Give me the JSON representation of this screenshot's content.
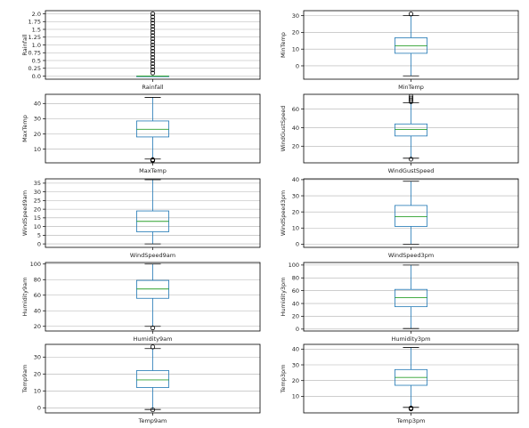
{
  "chart_data": [
    {
      "type": "box",
      "xlabel": "Rainfall",
      "ylabel": "Rainfall",
      "ylim": [
        -0.1,
        2.1
      ],
      "yticks": [
        0.0,
        0.25,
        0.5,
        0.75,
        1.0,
        1.25,
        1.5,
        1.75,
        2.0
      ],
      "ytick_labels": [
        "0.0",
        "0.25",
        "0.5",
        "0.75",
        "1.0",
        "1.25",
        "1.5",
        "1.75",
        "2.0"
      ],
      "q1": 0.0,
      "median": 0.0,
      "q3": 0.0,
      "whisker_low": 0.0,
      "whisker_high": 0.0,
      "outliers": [
        0.1,
        0.2,
        0.3,
        0.4,
        0.5,
        0.6,
        0.7,
        0.8,
        0.9,
        1.0,
        1.1,
        1.2,
        1.3,
        1.4,
        1.5,
        1.6,
        1.7,
        1.8,
        1.9,
        2.0
      ],
      "grid": true
    },
    {
      "type": "box",
      "xlabel": "MinTemp",
      "ylabel": "MinTemp",
      "ylim": [
        -8,
        33
      ],
      "yticks": [
        0,
        10,
        20,
        30
      ],
      "ytick_labels": [
        "0",
        "10",
        "20",
        "30"
      ],
      "q1": 7.5,
      "median": 12,
      "q3": 16.8,
      "whisker_low": -6,
      "whisker_high": 30,
      "outliers": [
        31
      ],
      "grid": true
    },
    {
      "type": "box",
      "xlabel": "MaxTemp",
      "ylabel": "MaxTemp",
      "ylim": [
        1,
        46
      ],
      "yticks": [
        10,
        20,
        30,
        40
      ],
      "ytick_labels": [
        "10",
        "20",
        "30",
        "40"
      ],
      "q1": 18,
      "median": 23,
      "q3": 28.5,
      "whisker_low": 3.5,
      "whisker_high": 44,
      "outliers": [
        2.5,
        2.8,
        3.1
      ],
      "grid": true
    },
    {
      "type": "box",
      "xlabel": "WindGustSpeed",
      "ylabel": "WindGustSpeed",
      "ylim": [
        2,
        76
      ],
      "yticks": [
        20,
        40,
        60
      ],
      "ytick_labels": [
        "20",
        "40",
        "60"
      ],
      "q1": 31,
      "median": 38,
      "q3": 44,
      "whisker_low": 7,
      "whisker_high": 67,
      "outliers": [
        6,
        68,
        70,
        72,
        74
      ],
      "grid": true
    },
    {
      "type": "box",
      "xlabel": "WindSpeed9am",
      "ylabel": "WindSpeed9am",
      "ylim": [
        -2,
        37.5
      ],
      "yticks": [
        0,
        5,
        10,
        15,
        20,
        25,
        30,
        35
      ],
      "ytick_labels": [
        "0",
        "5",
        "10",
        "15",
        "20",
        "25",
        "30",
        "35"
      ],
      "q1": 7,
      "median": 13,
      "q3": 19,
      "whisker_low": 0,
      "whisker_high": 37,
      "outliers": [],
      "grid": true
    },
    {
      "type": "box",
      "xlabel": "WindSpeed3pm",
      "ylabel": "WindSpeed3pm",
      "ylim": [
        -2,
        40.5
      ],
      "yticks": [
        0,
        10,
        20,
        30,
        40
      ],
      "ytick_labels": [
        "0",
        "10",
        "20",
        "30",
        "40"
      ],
      "q1": 11,
      "median": 17,
      "q3": 24,
      "whisker_low": 0,
      "whisker_high": 39,
      "outliers": [],
      "grid": true
    },
    {
      "type": "box",
      "xlabel": "Humidity9am",
      "ylabel": "Humidity9am",
      "ylim": [
        14,
        102
      ],
      "yticks": [
        20,
        40,
        60,
        80,
        100
      ],
      "ytick_labels": [
        "20",
        "40",
        "60",
        "80",
        "100"
      ],
      "q1": 56,
      "median": 68,
      "q3": 79,
      "whisker_low": 20,
      "whisker_high": 100,
      "outliers": [
        18
      ],
      "grid": true
    },
    {
      "type": "box",
      "xlabel": "Humidity3pm",
      "ylabel": "Humidity3pm",
      "ylim": [
        -3,
        104
      ],
      "yticks": [
        0,
        20,
        40,
        60,
        80,
        100
      ],
      "ytick_labels": [
        "0",
        "20",
        "40",
        "60",
        "80",
        "100"
      ],
      "q1": 35,
      "median": 49,
      "q3": 62,
      "whisker_low": 1,
      "whisker_high": 100,
      "outliers": [],
      "grid": true
    },
    {
      "type": "box",
      "xlabel": "Temp9am",
      "ylabel": "Temp9am",
      "ylim": [
        -3,
        37.5
      ],
      "yticks": [
        0,
        10,
        20,
        30
      ],
      "ytick_labels": [
        "0",
        "10",
        "20",
        "30"
      ],
      "q1": 12,
      "median": 16.5,
      "q3": 22,
      "whisker_low": -1,
      "whisker_high": 35,
      "outliers": [
        -1.2,
        36
      ],
      "grid": true
    },
    {
      "type": "box",
      "xlabel": "Temp3pm",
      "ylabel": "Temp3pm",
      "ylim": [
        -0.5,
        43
      ],
      "yticks": [
        10,
        20,
        30,
        40
      ],
      "ytick_labels": [
        "10",
        "20",
        "30",
        "40"
      ],
      "q1": 17,
      "median": 22,
      "q3": 27,
      "whisker_low": 3,
      "whisker_high": 41,
      "outliers": [
        2,
        2.3,
        2.6
      ],
      "grid": true
    }
  ],
  "colors": {
    "box": "#1f77b4",
    "median": "#2ca02c",
    "grid": "#b0b0b0",
    "axis": "#000000",
    "flier": "#000000"
  }
}
